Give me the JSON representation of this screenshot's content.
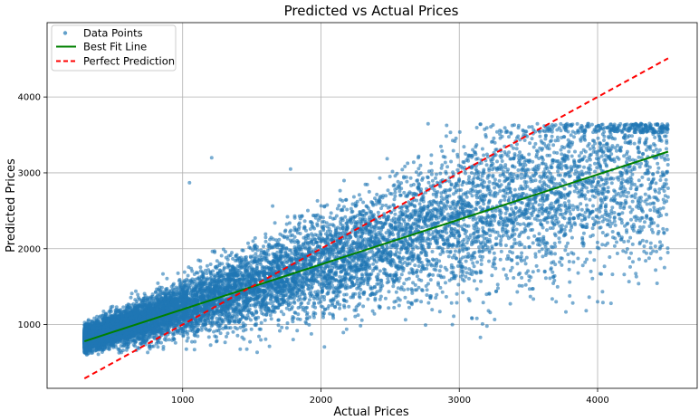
{
  "chart_data": {
    "type": "scatter",
    "title": "Predicted vs Actual Prices",
    "xlabel": "Actual Prices",
    "ylabel": "Predicted Prices",
    "xlim": [
      20,
      4720
    ],
    "ylim": [
      160,
      4980
    ],
    "xticks": [
      1000,
      2000,
      3000,
      4000
    ],
    "yticks": [
      1000,
      2000,
      3000,
      4000
    ],
    "xtick_labels": [
      "1000",
      "2000",
      "3000",
      "4000"
    ],
    "ytick_labels": [
      "1000",
      "2000",
      "3000",
      "4000"
    ],
    "grid": true,
    "legend_position": "top-left",
    "series": [
      {
        "name": "Data Points",
        "kind": "scatter",
        "color": "#1f77b4",
        "approx_point_count": 12000,
        "cluster_summary": {
          "x_range": [
            290,
            4510
          ],
          "y_range": [
            600,
            3650
          ],
          "densest_region": {
            "x": [
              400,
              1700
            ],
            "y": [
              800,
              1800
            ]
          },
          "note": "points spread widen as actual price increases"
        },
        "points": [
          [
            300,
            800
          ],
          [
            320,
            850
          ],
          [
            350,
            900
          ],
          [
            380,
            950
          ],
          [
            400,
            1100
          ],
          [
            420,
            780
          ],
          [
            450,
            1000
          ],
          [
            480,
            1200
          ],
          [
            500,
            850
          ],
          [
            550,
            950
          ],
          [
            600,
            1050
          ],
          [
            650,
            1150
          ],
          [
            700,
            1250
          ],
          [
            750,
            900
          ],
          [
            800,
            1000
          ],
          [
            850,
            1300
          ],
          [
            900,
            1100
          ],
          [
            950,
            1400
          ],
          [
            1000,
            1250
          ],
          [
            1050,
            1150
          ],
          [
            1100,
            1500
          ],
          [
            1150,
            1300
          ],
          [
            1200,
            1600
          ],
          [
            1250,
            1400
          ],
          [
            1300,
            1200
          ],
          [
            1350,
            1700
          ],
          [
            1400,
            1500
          ],
          [
            1450,
            1800
          ],
          [
            1500,
            1600
          ],
          [
            1550,
            1350
          ],
          [
            1600,
            1900
          ],
          [
            1650,
            1700
          ],
          [
            1700,
            1500
          ],
          [
            1750,
            2000
          ],
          [
            1800,
            1750
          ],
          [
            1850,
            2200
          ],
          [
            1900,
            1900
          ],
          [
            1950,
            1650
          ],
          [
            2000,
            2100
          ],
          [
            2050,
            1850
          ],
          [
            2100,
            2400
          ],
          [
            2150,
            2000
          ],
          [
            2200,
            1750
          ],
          [
            2250,
            2600
          ],
          [
            2300,
            2200
          ],
          [
            2400,
            1900
          ],
          [
            2450,
            2700
          ],
          [
            2500,
            2300
          ],
          [
            2600,
            2050
          ],
          [
            2700,
            2800
          ],
          [
            2800,
            2400
          ],
          [
            2900,
            2100
          ],
          [
            3000,
            2900
          ],
          [
            3100,
            2500
          ],
          [
            3200,
            2200
          ],
          [
            3300,
            3100
          ],
          [
            3400,
            2600
          ],
          [
            3500,
            2300
          ],
          [
            3600,
            3200
          ],
          [
            3700,
            2750
          ],
          [
            3800,
            2400
          ],
          [
            3900,
            3300
          ],
          [
            4000,
            2850
          ],
          [
            4100,
            2500
          ],
          [
            4200,
            3400
          ],
          [
            4300,
            2900
          ],
          [
            4400,
            2600
          ],
          [
            4450,
            3600
          ],
          [
            4500,
            3000
          ],
          [
            1210,
            3200
          ],
          [
            1050,
            2870
          ],
          [
            1780,
            3050
          ],
          [
            4160,
            3300
          ],
          [
            3700,
            1300
          ],
          [
            3200,
            980
          ],
          [
            2950,
            1000
          ],
          [
            4000,
            1300
          ],
          [
            4450,
            2000
          ]
        ]
      },
      {
        "name": "Best Fit Line",
        "kind": "line",
        "color": "#008000",
        "x": [
          290,
          4510
        ],
        "y": [
          780,
          3280
        ]
      },
      {
        "name": "Perfect Prediction",
        "kind": "line",
        "color": "#ff0000",
        "dashed": true,
        "x": [
          290,
          4510
        ],
        "y": [
          290,
          4510
        ]
      }
    ]
  }
}
